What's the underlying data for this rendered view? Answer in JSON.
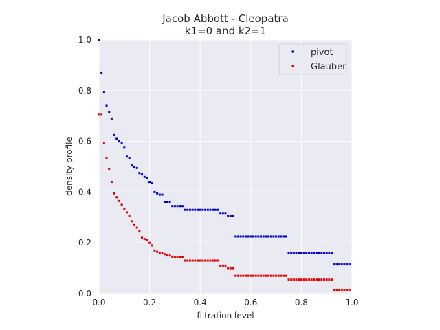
{
  "chart_data": {
    "type": "scatter",
    "title": "Jacob Abbott - Cleopatra",
    "subtitle": "k1=0 and k2=1",
    "xlabel": "filtration level",
    "ylabel": "density profile",
    "xlim": [
      0,
      1
    ],
    "ylim": [
      0,
      1
    ],
    "xticks": [
      "0.0",
      "0.2",
      "0.4",
      "0.6",
      "0.8",
      "1.0"
    ],
    "yticks": [
      "0.0",
      "0.2",
      "0.4",
      "0.6",
      "0.8",
      "1.0"
    ],
    "grid": true,
    "legend_position": "top-right",
    "series": [
      {
        "name": "pivot",
        "color": "#0000cc",
        "x": [
          0.0,
          0.01,
          0.02,
          0.03,
          0.04,
          0.05,
          0.06,
          0.07,
          0.08,
          0.09,
          0.1,
          0.11,
          0.12,
          0.13,
          0.14,
          0.15,
          0.16,
          0.17,
          0.18,
          0.19,
          0.2,
          0.21,
          0.22,
          0.23,
          0.24,
          0.25,
          0.26,
          0.27,
          0.28,
          0.29,
          0.3,
          0.31,
          0.32,
          0.33,
          0.34,
          0.35,
          0.36,
          0.37,
          0.38,
          0.39,
          0.4,
          0.41,
          0.42,
          0.43,
          0.44,
          0.45,
          0.46,
          0.47,
          0.48,
          0.49,
          0.5,
          0.51,
          0.52,
          0.53,
          0.54,
          0.55,
          0.56,
          0.57,
          0.58,
          0.59,
          0.6,
          0.61,
          0.62,
          0.63,
          0.64,
          0.65,
          0.66,
          0.67,
          0.68,
          0.69,
          0.7,
          0.71,
          0.72,
          0.73,
          0.74,
          0.75,
          0.76,
          0.77,
          0.78,
          0.79,
          0.8,
          0.81,
          0.82,
          0.83,
          0.84,
          0.85,
          0.86,
          0.87,
          0.88,
          0.89,
          0.9,
          0.91,
          0.92,
          0.93,
          0.94,
          0.95,
          0.96,
          0.97,
          0.98,
          0.99
        ],
        "y": [
          1.0,
          0.87,
          0.795,
          0.74,
          0.715,
          0.69,
          0.625,
          0.61,
          0.6,
          0.595,
          0.575,
          0.54,
          0.535,
          0.505,
          0.5,
          0.495,
          0.475,
          0.47,
          0.46,
          0.455,
          0.44,
          0.435,
          0.4,
          0.395,
          0.39,
          0.39,
          0.36,
          0.36,
          0.36,
          0.345,
          0.345,
          0.345,
          0.345,
          0.345,
          0.33,
          0.33,
          0.33,
          0.33,
          0.33,
          0.33,
          0.33,
          0.33,
          0.33,
          0.33,
          0.33,
          0.33,
          0.33,
          0.33,
          0.315,
          0.315,
          0.315,
          0.305,
          0.305,
          0.305,
          0.225,
          0.225,
          0.225,
          0.225,
          0.225,
          0.225,
          0.225,
          0.225,
          0.225,
          0.225,
          0.225,
          0.225,
          0.225,
          0.225,
          0.225,
          0.225,
          0.225,
          0.225,
          0.225,
          0.225,
          0.225,
          0.16,
          0.16,
          0.16,
          0.16,
          0.16,
          0.16,
          0.16,
          0.16,
          0.16,
          0.16,
          0.16,
          0.16,
          0.16,
          0.16,
          0.16,
          0.16,
          0.16,
          0.16,
          0.115,
          0.115,
          0.115,
          0.115,
          0.115,
          0.115,
          0.115
        ]
      },
      {
        "name": "Glauber",
        "color": "#e60000",
        "x": [
          0.0,
          0.01,
          0.02,
          0.03,
          0.04,
          0.05,
          0.06,
          0.07,
          0.08,
          0.09,
          0.1,
          0.11,
          0.12,
          0.13,
          0.14,
          0.15,
          0.16,
          0.17,
          0.18,
          0.19,
          0.2,
          0.21,
          0.22,
          0.23,
          0.24,
          0.25,
          0.26,
          0.27,
          0.28,
          0.29,
          0.3,
          0.31,
          0.32,
          0.33,
          0.34,
          0.35,
          0.36,
          0.37,
          0.38,
          0.39,
          0.4,
          0.41,
          0.42,
          0.43,
          0.44,
          0.45,
          0.46,
          0.47,
          0.48,
          0.49,
          0.5,
          0.51,
          0.52,
          0.53,
          0.54,
          0.55,
          0.56,
          0.57,
          0.58,
          0.59,
          0.6,
          0.61,
          0.62,
          0.63,
          0.64,
          0.65,
          0.66,
          0.67,
          0.68,
          0.69,
          0.7,
          0.71,
          0.72,
          0.73,
          0.74,
          0.75,
          0.76,
          0.77,
          0.78,
          0.79,
          0.8,
          0.81,
          0.82,
          0.83,
          0.84,
          0.85,
          0.86,
          0.87,
          0.88,
          0.89,
          0.9,
          0.91,
          0.92,
          0.93,
          0.94,
          0.95,
          0.96,
          0.97,
          0.98,
          0.99
        ],
        "y": [
          0.705,
          0.705,
          0.595,
          0.535,
          0.49,
          0.44,
          0.395,
          0.38,
          0.365,
          0.35,
          0.335,
          0.32,
          0.305,
          0.285,
          0.27,
          0.26,
          0.245,
          0.22,
          0.215,
          0.21,
          0.2,
          0.19,
          0.17,
          0.165,
          0.16,
          0.16,
          0.155,
          0.15,
          0.15,
          0.145,
          0.145,
          0.145,
          0.145,
          0.145,
          0.13,
          0.13,
          0.13,
          0.13,
          0.13,
          0.13,
          0.13,
          0.13,
          0.13,
          0.13,
          0.13,
          0.13,
          0.13,
          0.13,
          0.11,
          0.11,
          0.11,
          0.1,
          0.1,
          0.1,
          0.07,
          0.07,
          0.07,
          0.07,
          0.07,
          0.07,
          0.07,
          0.07,
          0.07,
          0.07,
          0.07,
          0.07,
          0.07,
          0.07,
          0.07,
          0.07,
          0.07,
          0.07,
          0.07,
          0.07,
          0.07,
          0.055,
          0.055,
          0.055,
          0.055,
          0.055,
          0.055,
          0.055,
          0.055,
          0.055,
          0.055,
          0.055,
          0.055,
          0.055,
          0.055,
          0.055,
          0.055,
          0.055,
          0.055,
          0.015,
          0.015,
          0.015,
          0.015,
          0.015,
          0.015,
          0.015
        ]
      }
    ]
  },
  "colors": {
    "plot_background": "#eaeaf2",
    "grid": "#ffffff"
  }
}
